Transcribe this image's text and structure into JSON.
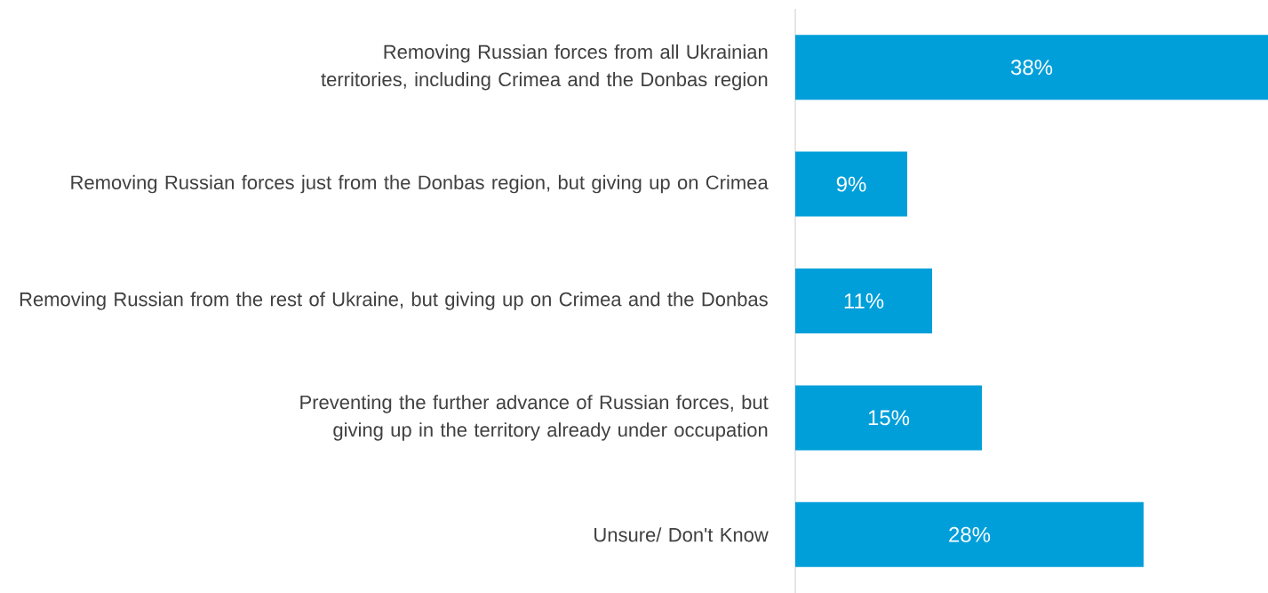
{
  "chart_data": {
    "type": "bar",
    "orientation": "horizontal",
    "categories": [
      "Removing Russian forces from all Ukrainian territories, including Crimea and the Donbas region",
      "Removing Russian forces just from the Donbas region, but giving up on Crimea",
      "Removing Russian from the rest of Ukraine, but giving up on Crimea and the Donbas",
      "Preventing the further advance of Russian forces, but giving up in the territory already under occupation",
      "Unsure/ Don't Know"
    ],
    "values": [
      38,
      9,
      11,
      15,
      28
    ],
    "value_labels": [
      "38%",
      "9%",
      "11%",
      "15%",
      "28%"
    ],
    "color": "#009fda",
    "xlim": [
      0,
      38
    ]
  }
}
